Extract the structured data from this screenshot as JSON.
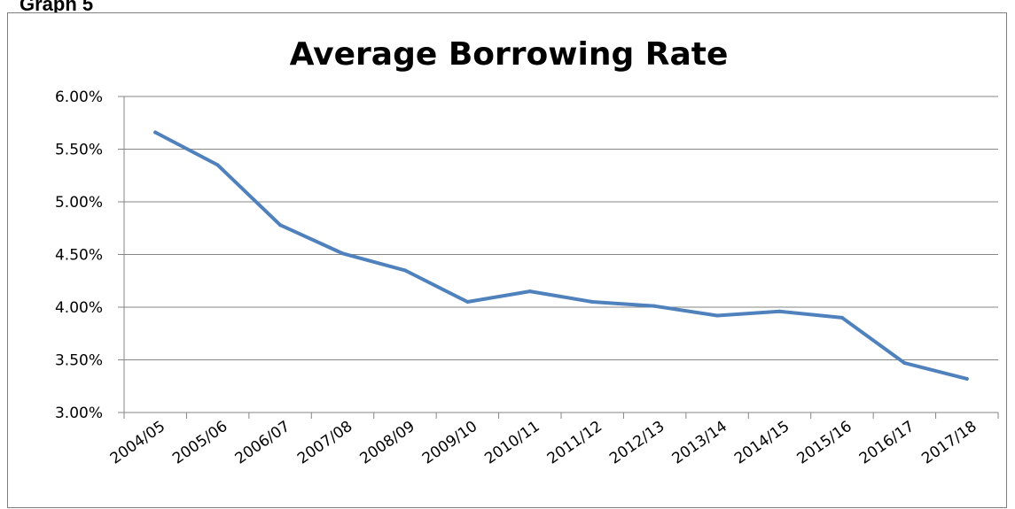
{
  "page": {
    "graph_label": "Graph 5"
  },
  "chart_data": {
    "type": "line",
    "title": "Average Borrowing Rate",
    "xlabel": "",
    "ylabel": "",
    "ylim": [
      0.03,
      0.06
    ],
    "yticks": [
      "3.00%",
      "3.50%",
      "4.00%",
      "4.50%",
      "5.00%",
      "5.50%",
      "6.00%"
    ],
    "ytick_values": [
      0.03,
      0.035,
      0.04,
      0.045,
      0.05,
      0.055,
      0.06
    ],
    "categories": [
      "2004/05",
      "2005/06",
      "2006/07",
      "2007/08",
      "2008/09",
      "2009/10",
      "2010/11",
      "2011/12",
      "2012/13",
      "2013/14",
      "2014/15",
      "2015/16",
      "2016/17",
      "2017/18"
    ],
    "series": [
      {
        "values": [
          0.0566,
          0.0535,
          0.0478,
          0.0451,
          0.0435,
          0.0405,
          0.0415,
          0.0405,
          0.0401,
          0.0392,
          0.0396,
          0.039,
          0.0347,
          0.0332
        ],
        "color": "#4f81bd"
      }
    ],
    "grid": true,
    "legend": "none"
  }
}
